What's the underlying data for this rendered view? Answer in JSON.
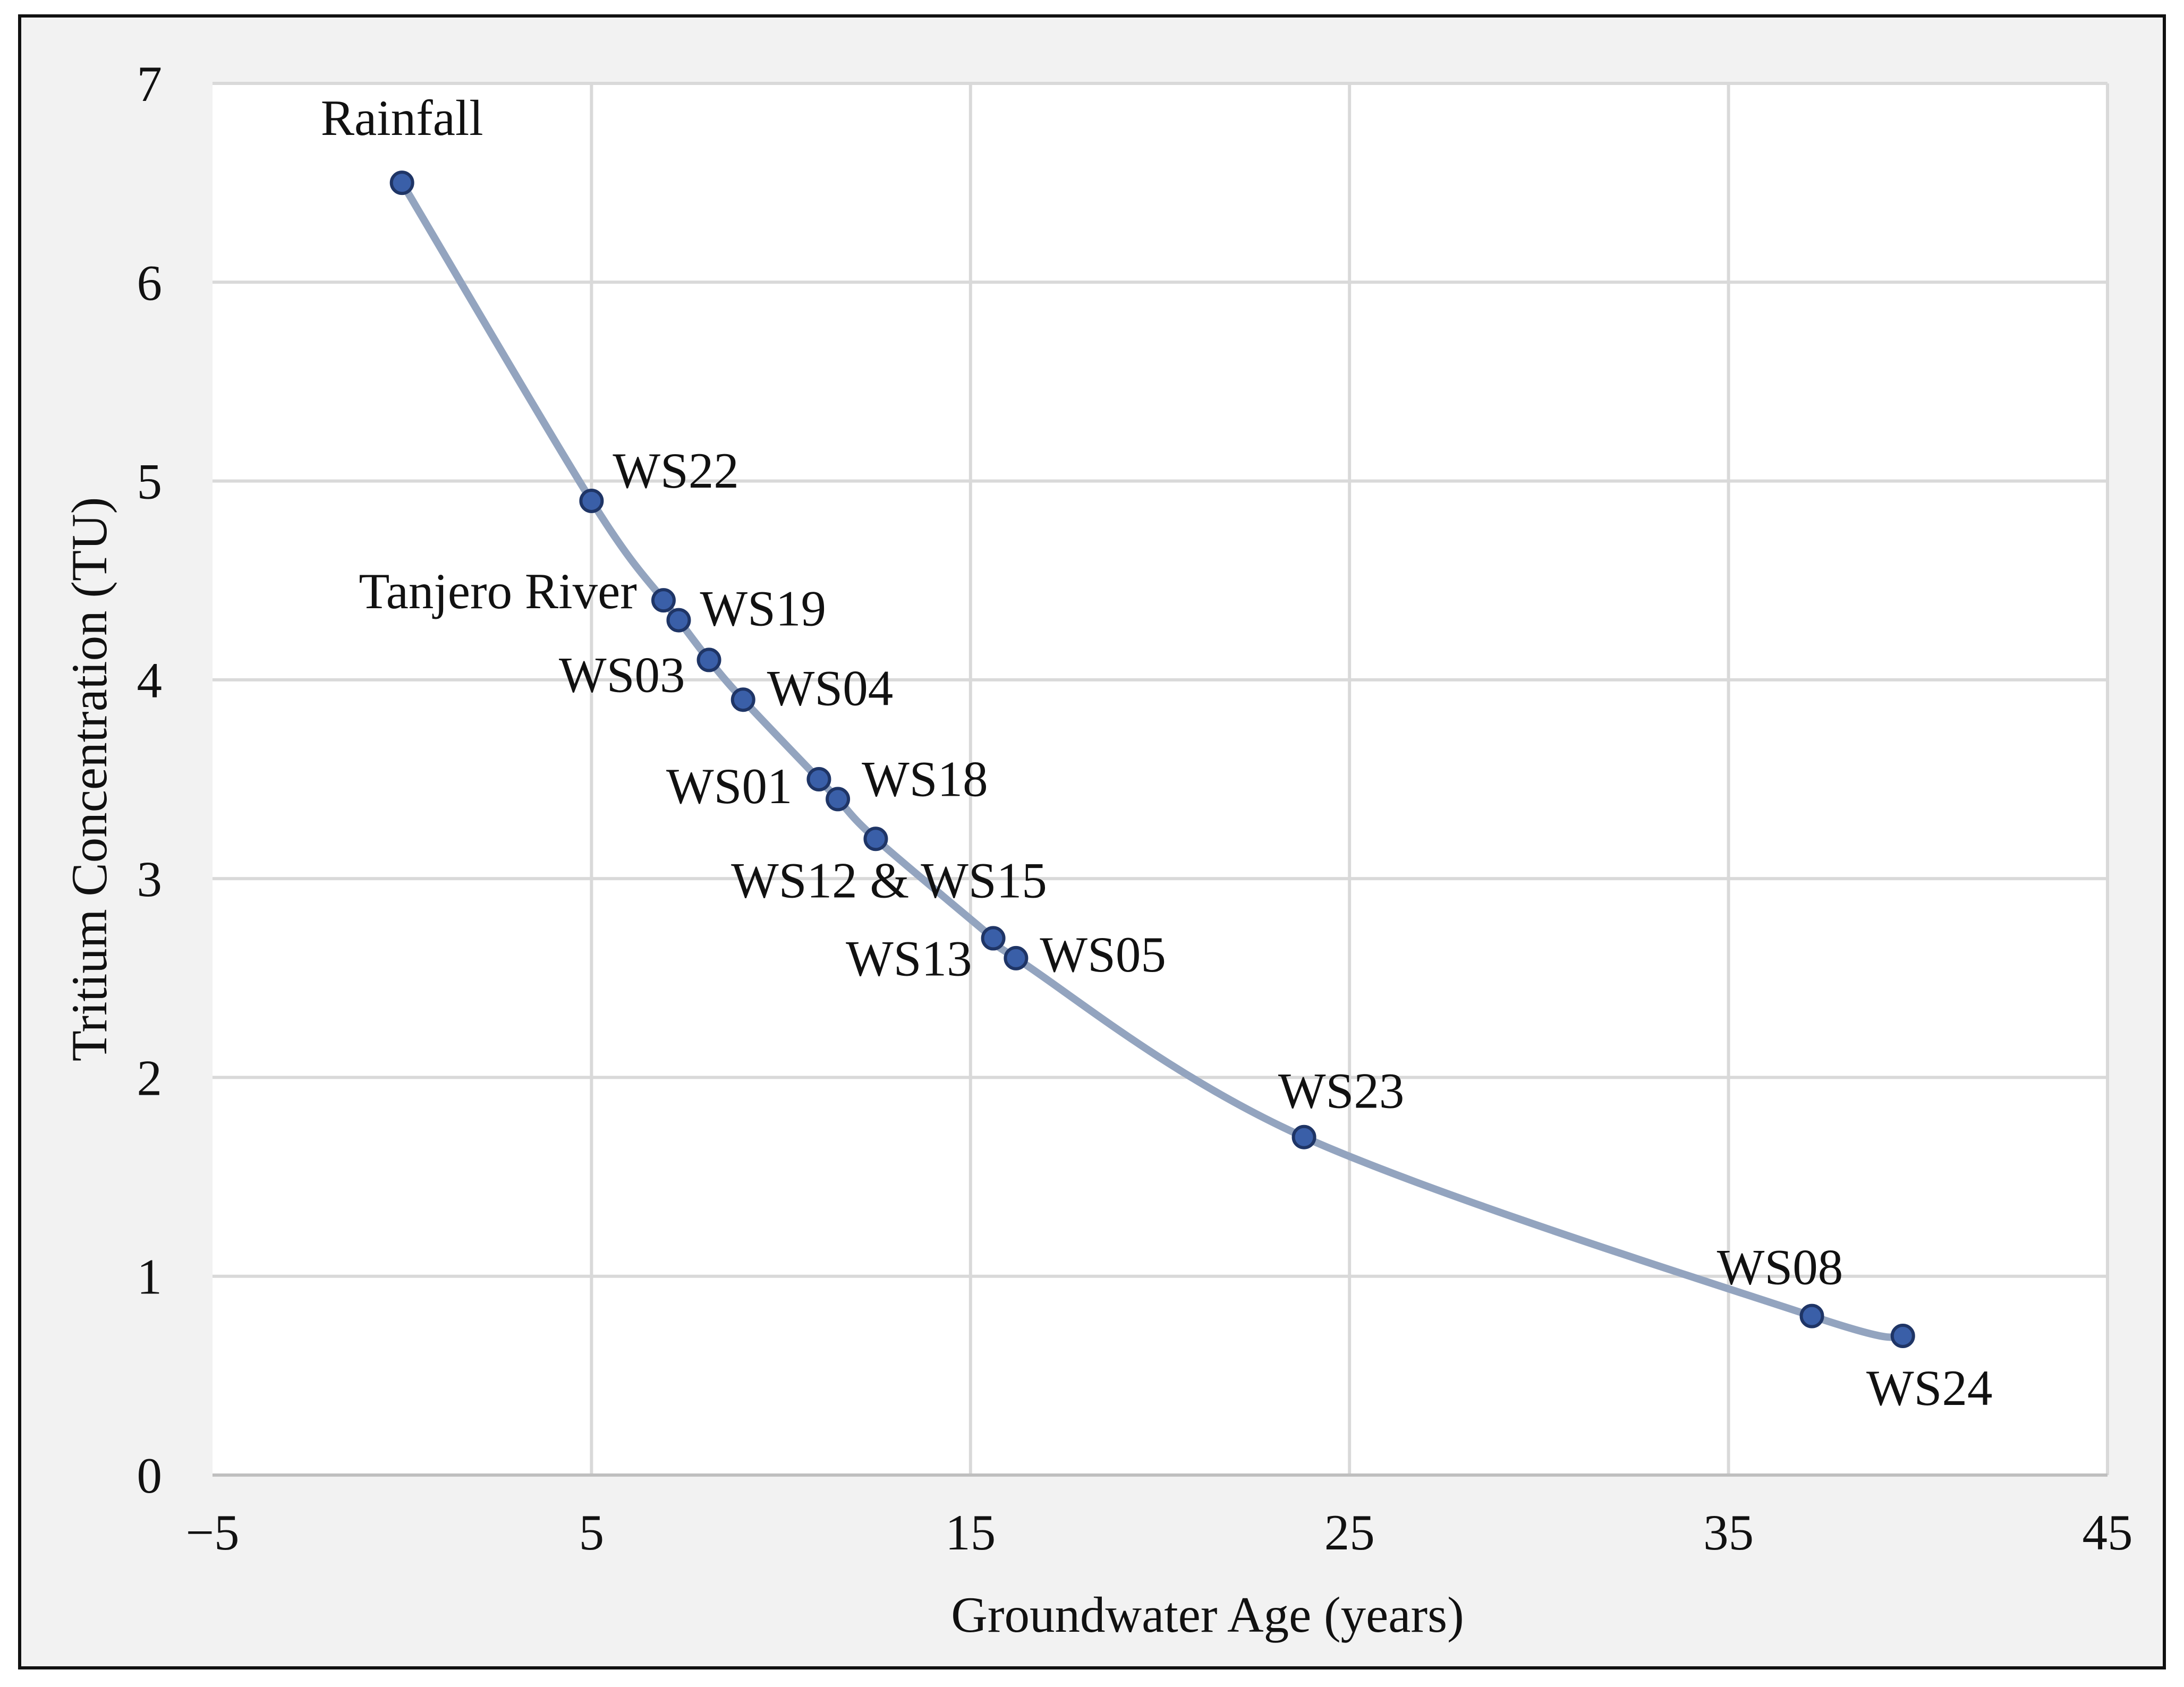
{
  "chart_data": {
    "type": "scatter",
    "xlabel": "Groundwater Age (years)",
    "ylabel": "Tritium Concentration (TU)",
    "xlim": [
      -5,
      45
    ],
    "ylim": [
      0,
      7
    ],
    "x_ticks": [
      -5,
      5,
      15,
      25,
      35,
      45
    ],
    "x_tick_labels": [
      "−5",
      "5",
      "15",
      "25",
      "35",
      "45"
    ],
    "y_ticks": [
      0,
      1,
      2,
      3,
      4,
      5,
      6,
      7
    ],
    "y_tick_labels": [
      "0",
      "1",
      "2",
      "3",
      "4",
      "5",
      "6",
      "7"
    ],
    "grid": true,
    "legend": "none",
    "trendline": "smooth curve through points",
    "colors": {
      "marker": "#3a5fa8",
      "marker_edge": "#1f3566",
      "trend": "#93a4bf",
      "grid": "#d9d9d9",
      "plot_bg": "#ffffff",
      "chart_bg": "#f2f2f2",
      "border": "#111111"
    },
    "points": [
      {
        "label": "Rainfall",
        "x": 0,
        "y": 6.5
      },
      {
        "label": "WS22",
        "x": 5,
        "y": 4.9
      },
      {
        "label": "Tanjero River",
        "x": 6.9,
        "y": 4.4
      },
      {
        "label": "WS19",
        "x": 7.3,
        "y": 4.3
      },
      {
        "label": "WS03",
        "x": 8.1,
        "y": 4.1
      },
      {
        "label": "WS04",
        "x": 9.0,
        "y": 3.9
      },
      {
        "label": "WS01",
        "x": 11.0,
        "y": 3.5
      },
      {
        "label": "WS18",
        "x": 11.5,
        "y": 3.4
      },
      {
        "label": "WS12 & WS15",
        "x": 12.5,
        "y": 3.2
      },
      {
        "label": "WS13",
        "x": 15.6,
        "y": 2.7
      },
      {
        "label": "WS05",
        "x": 16.2,
        "y": 2.6
      },
      {
        "label": "WS23",
        "x": 23.8,
        "y": 1.7
      },
      {
        "label": "WS08",
        "x": 37.2,
        "y": 0.8
      },
      {
        "label": "WS24",
        "x": 39.6,
        "y": 0.7
      }
    ]
  }
}
